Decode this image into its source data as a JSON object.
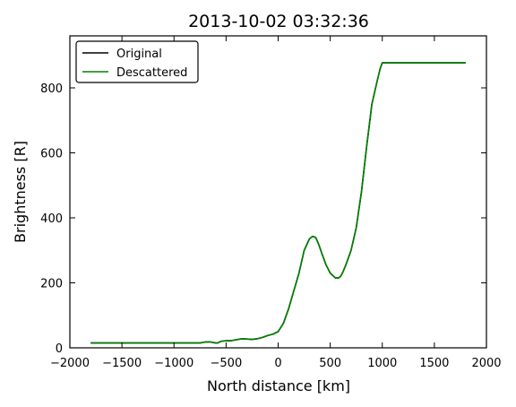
{
  "chart_data": {
    "type": "line",
    "title": "2013-10-02 03:32:36",
    "xlabel": "North distance [km]",
    "ylabel": "Brightness [R]",
    "xlim": [
      -2000,
      2000
    ],
    "ylim": [
      0,
      960
    ],
    "xticks": [
      -2000,
      -1500,
      -1000,
      -500,
      0,
      500,
      1000,
      1500,
      2000
    ],
    "xtick_labels": [
      "−2000",
      "−1500",
      "−1000",
      "−500",
      "0",
      "500",
      "1000",
      "1500",
      "2000"
    ],
    "yticks": [
      0,
      200,
      400,
      600,
      800
    ],
    "ytick_labels": [
      "0",
      "200",
      "400",
      "600",
      "800"
    ],
    "grid": false,
    "legend_position": "top-left",
    "series": [
      {
        "name": "Original",
        "color": "#000000",
        "x": [
          -1800,
          -1500,
          -1200,
          -1000,
          -900,
          -750,
          -700,
          -650,
          -600,
          -580,
          -550,
          -500,
          -450,
          -400,
          -350,
          -300,
          -250,
          -200,
          -150,
          -100,
          -50,
          0,
          50,
          100,
          150,
          200,
          250,
          300,
          330,
          360,
          390,
          420,
          460,
          500,
          550,
          580,
          600,
          620,
          650,
          700,
          750,
          800,
          850,
          900,
          950,
          980,
          1000,
          1050,
          1200,
          1400,
          1600,
          1800
        ],
        "y": [
          15,
          15,
          15,
          15,
          15,
          15,
          18,
          18,
          15,
          15,
          20,
          22,
          22,
          25,
          28,
          27,
          26,
          28,
          32,
          38,
          42,
          50,
          75,
          120,
          175,
          230,
          300,
          335,
          343,
          340,
          318,
          290,
          255,
          230,
          215,
          215,
          220,
          232,
          255,
          300,
          370,
          480,
          620,
          750,
          820,
          860,
          877,
          877,
          877,
          877,
          877,
          877
        ]
      },
      {
        "name": "Descattered",
        "color": "#008000",
        "x": [
          -1800,
          -1500,
          -1200,
          -1000,
          -900,
          -750,
          -700,
          -650,
          -600,
          -580,
          -550,
          -500,
          -450,
          -400,
          -350,
          -300,
          -250,
          -200,
          -150,
          -100,
          -50,
          0,
          50,
          100,
          150,
          200,
          250,
          300,
          330,
          360,
          390,
          420,
          460,
          500,
          550,
          580,
          600,
          620,
          650,
          700,
          750,
          800,
          850,
          900,
          950,
          980,
          1000,
          1050,
          1200,
          1400,
          1600,
          1800
        ],
        "y": [
          15,
          15,
          15,
          15,
          15,
          15,
          18,
          18,
          15,
          15,
          20,
          22,
          22,
          25,
          28,
          27,
          26,
          28,
          32,
          38,
          42,
          50,
          75,
          120,
          175,
          230,
          300,
          335,
          343,
          340,
          318,
          290,
          255,
          230,
          215,
          215,
          220,
          232,
          255,
          300,
          370,
          480,
          620,
          750,
          820,
          860,
          877,
          877,
          877,
          877,
          877,
          877
        ]
      }
    ]
  }
}
